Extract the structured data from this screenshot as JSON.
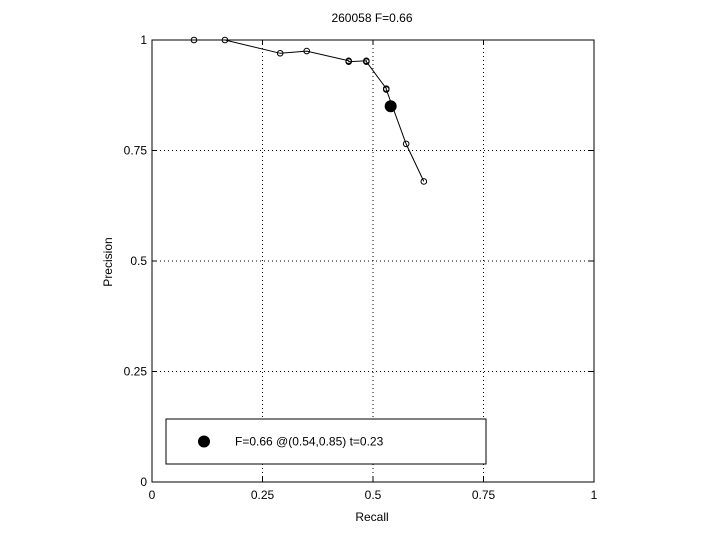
{
  "chart_data": {
    "type": "line",
    "title": "260058 F=0.66",
    "xlabel": "Recall",
    "ylabel": "Precision",
    "xlim": [
      0,
      1
    ],
    "ylim": [
      0,
      1
    ],
    "grid": true,
    "xticks": [
      0,
      0.25,
      0.5,
      0.75,
      1
    ],
    "yticks": [
      0,
      0.25,
      0.5,
      0.75,
      1
    ],
    "xtick_labels": [
      "0",
      "0.25",
      "0.5",
      "0.75",
      "1"
    ],
    "ytick_labels": [
      "0",
      "0.25",
      "0.5",
      "0.75",
      "1"
    ],
    "series": [
      {
        "marker": "open-circle",
        "color": "#000000",
        "points": [
          {
            "x": 0.095,
            "y": 1.0
          },
          {
            "x": 0.165,
            "y": 1.0
          },
          {
            "x": 0.29,
            "y": 0.97
          },
          {
            "x": 0.35,
            "y": 0.975
          },
          {
            "x": 0.445,
            "y": 0.953
          },
          {
            "x": 0.445,
            "y": 0.951
          },
          {
            "x": 0.485,
            "y": 0.953
          },
          {
            "x": 0.485,
            "y": 0.951
          },
          {
            "x": 0.53,
            "y": 0.89
          },
          {
            "x": 0.53,
            "y": 0.888
          },
          {
            "x": 0.575,
            "y": 0.765
          },
          {
            "x": 0.615,
            "y": 0.68
          }
        ]
      }
    ],
    "highlight": {
      "x": 0.54,
      "y": 0.85,
      "marker": "filled-circle",
      "color": "#000000"
    },
    "legend": {
      "placement": "bottom-left",
      "text": "F=0.66 @(0.54,0.85) t=0.23"
    }
  }
}
